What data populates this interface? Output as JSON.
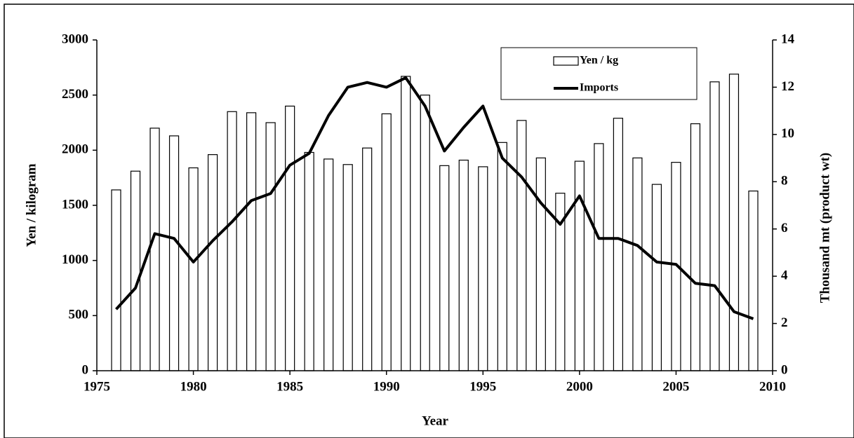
{
  "chart_data": {
    "type": "bar",
    "x_label": "Year",
    "y_label": "Yen / kilogram",
    "y2_label": "Thousand mt (product wt)",
    "x": [
      1976,
      1977,
      1978,
      1979,
      1980,
      1981,
      1982,
      1983,
      1984,
      1985,
      1986,
      1987,
      1988,
      1989,
      1990,
      1991,
      1992,
      1993,
      1994,
      1995,
      1996,
      1997,
      1998,
      1999,
      2000,
      2001,
      2002,
      2003,
      2004,
      2005,
      2006,
      2007,
      2008,
      2009
    ],
    "series": [
      {
        "name": "Yen / kg",
        "type": "bar",
        "color": "#ffffff",
        "axis": "y",
        "values": [
          1640,
          1810,
          2200,
          2130,
          1840,
          1960,
          2350,
          2340,
          2250,
          2400,
          1980,
          1920,
          1870,
          2020,
          2330,
          2670,
          2500,
          1860,
          1910,
          1850,
          2070,
          2270,
          1930,
          1610,
          1900,
          2060,
          2290,
          1930,
          1690,
          1890,
          2240,
          2620,
          2690,
          1630
        ]
      },
      {
        "name": "Imports",
        "type": "line",
        "color": "#000000",
        "axis": "y2",
        "values": [
          2.6,
          3.5,
          5.8,
          5.6,
          4.6,
          5.5,
          6.3,
          7.2,
          7.5,
          8.7,
          9.2,
          10.8,
          12.0,
          12.2,
          12.0,
          12.4,
          11.2,
          9.3,
          10.3,
          11.2,
          9.0,
          8.2,
          7.1,
          6.2,
          7.4,
          5.6,
          5.6,
          5.3,
          4.6,
          4.5,
          3.7,
          3.6,
          2.5,
          2.2
        ]
      }
    ],
    "xlim": [
      1975,
      2010
    ],
    "xticks": [
      1975,
      1980,
      1985,
      1990,
      1995,
      2000,
      2005,
      2010
    ],
    "ylim": [
      0,
      3000
    ],
    "yticks": [
      0,
      500,
      1000,
      1500,
      2000,
      2500,
      3000
    ],
    "y2lim": [
      0,
      14
    ],
    "y2ticks": [
      0,
      2,
      4,
      6,
      8,
      10,
      12,
      14
    ],
    "grid": false,
    "legend": "upper right"
  }
}
